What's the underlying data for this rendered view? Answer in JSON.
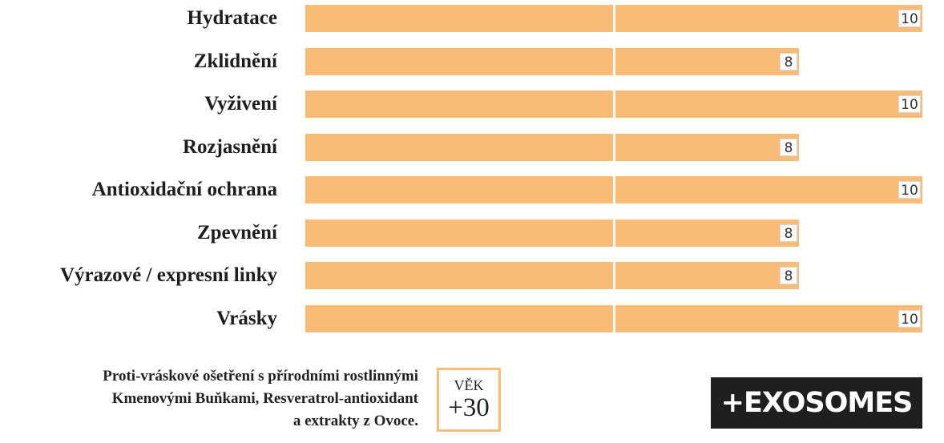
{
  "chart_data": {
    "type": "bar",
    "orientation": "horizontal",
    "categories": [
      "Hydratace",
      "Zklidnění",
      "Vyživení",
      "Rozjasnění",
      "Antioxidační ochrana",
      "Zpevnění",
      "Výrazové / expresní linky",
      "Vrásky"
    ],
    "values": [
      10,
      8,
      10,
      8,
      10,
      8,
      8,
      10
    ],
    "xlim": [
      0,
      10
    ],
    "grid": false,
    "bar_color": "#f8bb78",
    "label_suffix": [
      "",
      "",
      "",
      "",
      " ",
      "",
      " ",
      ""
    ]
  },
  "footer": {
    "description_lines": [
      "Proti-vráskové ošetření s přírodními rostlinnými",
      "Kmenovými Buňkami, Resveratrol-antioxidant",
      "a extrakty z Ovoce."
    ],
    "age_label": "VĚK",
    "age_value": "+30",
    "age_box_color": "#f6bd7b",
    "brand": "+EXOSOMES"
  }
}
